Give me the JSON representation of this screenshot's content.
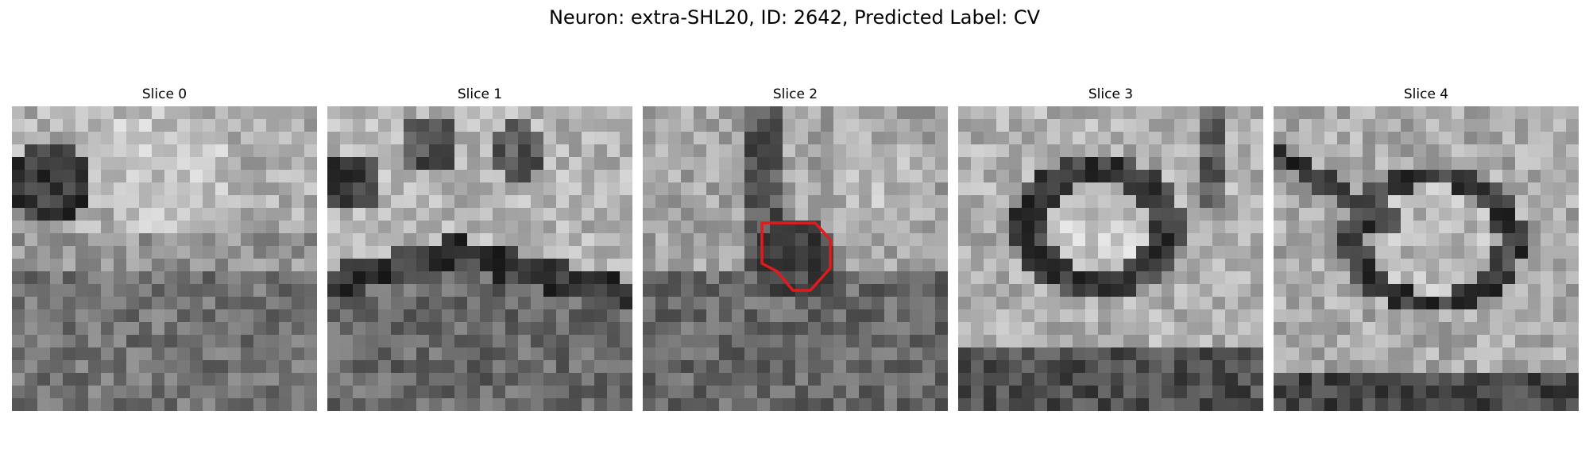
{
  "figure": {
    "title": "Neuron: extra-SHL20, ID: 2642, Predicted Label: CV"
  },
  "slices": [
    {
      "label": "Slice 0"
    },
    {
      "label": "Slice 1"
    },
    {
      "label": "Slice 2"
    },
    {
      "label": "Slice 3"
    },
    {
      "label": "Slice 4"
    }
  ],
  "outline": {
    "slice_index": 2,
    "color": "#e31a1c"
  }
}
